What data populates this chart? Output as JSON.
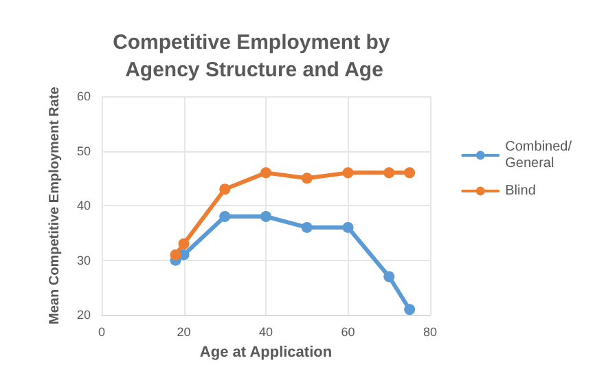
{
  "chart_data": {
    "type": "line",
    "title": "Competitive Employment by Agency Structure and Age",
    "xlabel": "Age at Application",
    "ylabel": "Mean Competitive Employment Rate",
    "x": [
      18,
      20,
      30,
      40,
      50,
      60,
      70,
      75
    ],
    "series": [
      {
        "name": "Combined/General",
        "color": "#5b9bd5",
        "values": [
          30,
          31,
          38,
          38,
          36,
          36,
          27,
          21
        ]
      },
      {
        "name": "Blind",
        "color": "#ed7d31",
        "values": [
          31,
          33,
          43,
          46,
          45,
          46,
          46,
          46
        ]
      }
    ],
    "xlim": [
      0,
      80
    ],
    "xticks": [
      0,
      20,
      40,
      60,
      80
    ],
    "ylim": [
      20,
      60
    ],
    "yticks": [
      20,
      30,
      40,
      50,
      60
    ],
    "grid": true,
    "legend": "right",
    "marker": "circle",
    "line_style": "solid"
  }
}
